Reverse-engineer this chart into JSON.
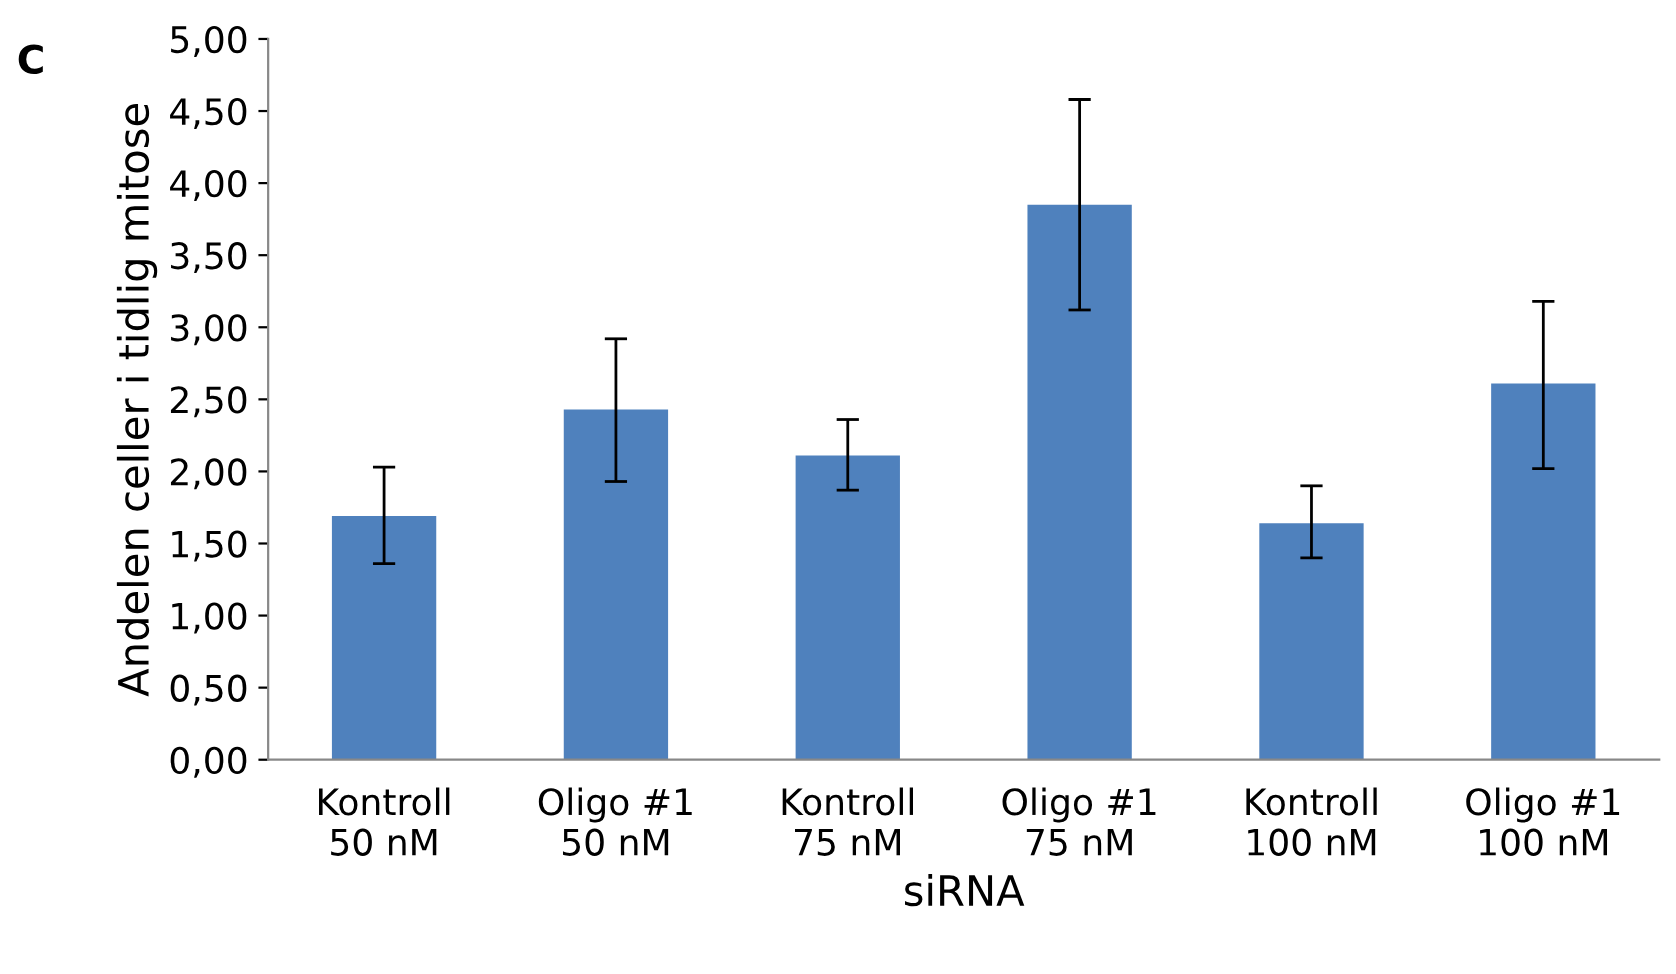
{
  "chart_data": {
    "type": "bar",
    "xlabel": "siRNA",
    "ylabel": "Andelen celler i tidlig mitose",
    "annotations": [
      "C"
    ],
    "categories": [
      "Kontroll\n50 nM",
      "Oligo #1\n50 nM",
      "Kontroll\n75 nM",
      "Oligo #1\n75 nM",
      "Kontroll\n100 nM",
      "Oligo #1\n100 nM"
    ],
    "values": [
      1.69,
      2.43,
      2.11,
      3.85,
      1.64,
      2.61
    ],
    "errors": [
      [
        1.36,
        2.03
      ],
      [
        1.93,
        2.92
      ],
      [
        1.87,
        2.36
      ],
      [
        3.12,
        4.58
      ],
      [
        1.4,
        1.9
      ],
      [
        2.02,
        3.18
      ]
    ],
    "color": "#4f81bd",
    "ylim": [
      0,
      5
    ],
    "yticks": [
      {
        "value": 0,
        "label": "0,00"
      },
      {
        "value": 0.5,
        "label": "0,50"
      },
      {
        "value": 1,
        "label": "1,00"
      },
      {
        "value": 1.5,
        "label": "1,50"
      },
      {
        "value": 2,
        "label": "2,00"
      },
      {
        "value": 2.5,
        "label": "2,50"
      },
      {
        "value": 3,
        "label": "3,00"
      },
      {
        "value": 3.5,
        "label": "3,50"
      },
      {
        "value": 4,
        "label": "4,00"
      },
      {
        "value": 4.5,
        "label": "4,50"
      },
      {
        "value": 5,
        "label": "5,00"
      }
    ],
    "grid": false,
    "legend": false
  }
}
